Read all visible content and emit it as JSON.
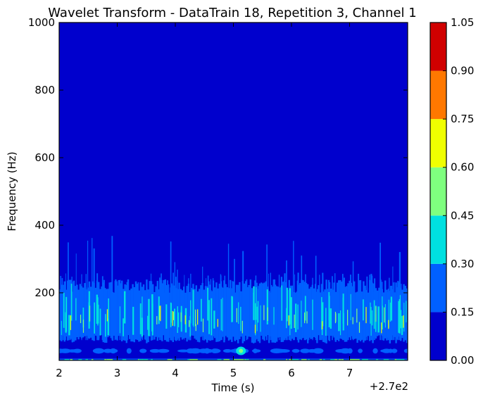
{
  "chart_data": {
    "type": "heatmap",
    "title": "Wavelet Transform - DataTrain 18, Repetition 3, Channel 1",
    "xlabel": "Time (s)",
    "ylabel": "Frequency (Hz)",
    "x_offset_label": "+2.7e2",
    "x_ticks": [
      2,
      3,
      4,
      5,
      6,
      7
    ],
    "x_tick_labels": [
      "2",
      "3",
      "4",
      "5",
      "6",
      "7"
    ],
    "xlim": [
      2,
      8
    ],
    "y_ticks": [
      200,
      400,
      600,
      800,
      1000
    ],
    "y_tick_labels": [
      "200",
      "400",
      "600",
      "800",
      "1000"
    ],
    "ylim": [
      0,
      1000
    ],
    "colorbar": {
      "levels": [
        0.0,
        0.15,
        0.3,
        0.45,
        0.6,
        0.75,
        0.9,
        1.05
      ],
      "labels": [
        "0.00",
        "0.15",
        "0.30",
        "0.45",
        "0.60",
        "0.75",
        "0.90",
        "1.05"
      ],
      "colors": [
        "#0000cd",
        "#0060ff",
        "#00e0e0",
        "#7fff7f",
        "#f0ff00",
        "#ff7800",
        "#d00000"
      ]
    },
    "background_color": "#0000cd",
    "colormap": "jet",
    "dominant_band_hz": [
      50,
      230
    ],
    "peak_frequency_hz": 370,
    "noise_seed": 18
  }
}
